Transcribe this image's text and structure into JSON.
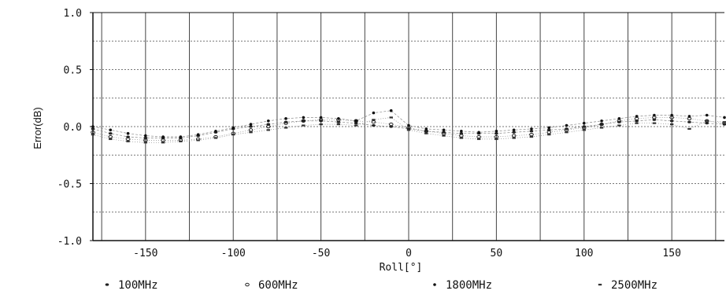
{
  "chart_data": {
    "type": "scatter",
    "title": "",
    "xlabel": "Roll[°]",
    "ylabel": "Error(dB)",
    "xlim": [
      -180,
      180
    ],
    "ylim": [
      -1.0,
      1.0
    ],
    "grid": true,
    "legend_position": "bottom",
    "x_ticks": [
      "-150",
      "-100",
      "-50",
      "0",
      "50",
      "100",
      "150"
    ],
    "y_ticks": [
      "1.0",
      "0.5",
      "0.0",
      "-0.5",
      "-1.0"
    ],
    "x": [
      -180,
      -170,
      -160,
      -150,
      -140,
      -130,
      -120,
      -110,
      -100,
      -90,
      -80,
      -70,
      -60,
      -50,
      -40,
      -30,
      -20,
      -10,
      0,
      10,
      20,
      30,
      40,
      50,
      60,
      70,
      80,
      90,
      100,
      110,
      120,
      130,
      140,
      150,
      160,
      170,
      180
    ],
    "series": [
      {
        "name": "100MHz",
        "values": [
          -0.02,
          -0.06,
          -0.09,
          -0.1,
          -0.1,
          -0.1,
          -0.08,
          -0.05,
          -0.02,
          0.0,
          0.02,
          0.04,
          0.05,
          0.05,
          0.04,
          0.03,
          0.01,
          0.0,
          -0.02,
          -0.04,
          -0.05,
          -0.06,
          -0.06,
          -0.06,
          -0.05,
          -0.04,
          -0.03,
          -0.02,
          0.0,
          0.02,
          0.04,
          0.05,
          0.06,
          0.05,
          0.04,
          0.03,
          0.02
        ]
      },
      {
        "name": "600MHz",
        "values": [
          -0.05,
          -0.09,
          -0.11,
          -0.12,
          -0.12,
          -0.12,
          -0.11,
          -0.09,
          -0.06,
          -0.03,
          0.0,
          0.03,
          0.05,
          0.06,
          0.06,
          0.05,
          0.04,
          0.02,
          -0.01,
          -0.04,
          -0.06,
          -0.08,
          -0.09,
          -0.09,
          -0.08,
          -0.07,
          -0.05,
          -0.03,
          -0.01,
          0.02,
          0.05,
          0.07,
          0.08,
          0.08,
          0.07,
          0.05,
          0.03
        ]
      },
      {
        "name": "1800MHz",
        "values": [
          0.0,
          -0.03,
          -0.06,
          -0.08,
          -0.09,
          -0.09,
          -0.07,
          -0.04,
          -0.01,
          0.02,
          0.05,
          0.07,
          0.08,
          0.08,
          0.07,
          0.05,
          0.12,
          0.14,
          0.01,
          -0.02,
          -0.03,
          -0.04,
          -0.05,
          -0.04,
          -0.03,
          -0.02,
          -0.01,
          0.01,
          0.03,
          0.05,
          0.07,
          0.09,
          0.1,
          0.1,
          0.09,
          0.1,
          0.08
        ]
      },
      {
        "name": "2500MHz",
        "values": [
          -0.07,
          -0.11,
          -0.13,
          -0.14,
          -0.14,
          -0.13,
          -0.12,
          -0.1,
          -0.07,
          -0.05,
          -0.03,
          -0.01,
          0.01,
          0.02,
          0.02,
          0.01,
          0.06,
          0.08,
          -0.03,
          -0.06,
          -0.08,
          -0.1,
          -0.11,
          -0.11,
          -0.1,
          -0.09,
          -0.07,
          -0.05,
          -0.03,
          -0.01,
          0.01,
          0.03,
          0.03,
          0.02,
          -0.02,
          0.05,
          0.04
        ]
      }
    ]
  }
}
